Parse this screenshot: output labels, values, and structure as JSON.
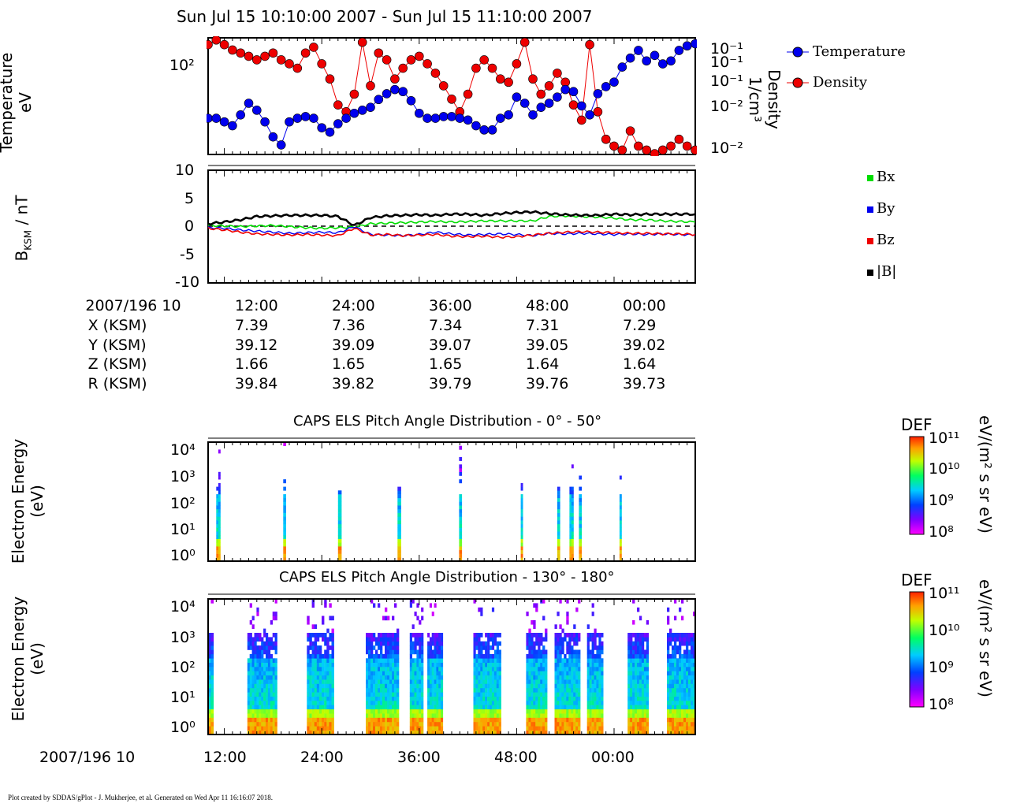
{
  "figure": {
    "title": "Sun Jul 15 10:10:00 2007 - Sun Jul 15 11:10:00 2007",
    "footer": "Plot created by SDDAS/gPlot - J. Mukherjee, et al.  Generated on Wed Apr 11 16:16:07 2018."
  },
  "panel1": {
    "ylabel_line1": "Temperature",
    "ylabel_line2": "eV",
    "ytick": "10²",
    "right_label_line1": "Density",
    "right_label_line2": "1/cm³",
    "right_ticks": [
      "10⁻¹",
      "10⁻¹",
      "10⁻¹",
      "10⁻²",
      "10⁻²"
    ]
  },
  "panel2": {
    "ylabel": "B",
    "ylabel_sub": "KSM",
    "ylabel_rest": " / nT",
    "yticks": [
      "10",
      "5",
      "0",
      "-5",
      "-10"
    ]
  },
  "ephemeris": {
    "rows": [
      {
        "label": "2007/196 10",
        "values": [
          "12:00",
          "24:00",
          "36:00",
          "48:00",
          "00:00"
        ]
      },
      {
        "label": "X (KSM)",
        "values": [
          "7.39",
          "7.36",
          "7.34",
          "7.31",
          "7.29"
        ]
      },
      {
        "label": "Y (KSM)",
        "values": [
          "39.12",
          "39.09",
          "39.07",
          "39.05",
          "39.02"
        ]
      },
      {
        "label": "Z (KSM)",
        "values": [
          "1.66",
          "1.65",
          "1.65",
          "1.64",
          "1.64"
        ]
      },
      {
        "label": "R (KSM)",
        "values": [
          "39.84",
          "39.82",
          "39.79",
          "39.76",
          "39.73"
        ]
      }
    ]
  },
  "panel3": {
    "title": "CAPS ELS Pitch Angle Distribution - 0° - 50°",
    "ylabel_line1": "Electron Energy",
    "ylabel_line2": "(eV)"
  },
  "panel4": {
    "title": "CAPS ELS Pitch Angle Distribution - 130° - 180°",
    "ylabel_line1": "Electron Energy",
    "ylabel_line2": "(eV)"
  },
  "spec_yticks": [
    "10⁴",
    "10³",
    "10²",
    "10¹",
    "10⁰"
  ],
  "colorbar": {
    "title": "DEF",
    "units": "eV/(m² s sr eV)",
    "ticks": [
      "10¹¹",
      "10¹⁰",
      "10⁹",
      "10⁸"
    ]
  },
  "bottom_axis": {
    "label": "2007/196 10",
    "ticks": [
      "12:00",
      "24:00",
      "36:00",
      "48:00",
      "00:00"
    ]
  },
  "colors": {
    "temperature": "#0000ee",
    "density": "#ee0000",
    "bx": "#00dd00",
    "by": "#0000ee",
    "bz": "#ee0000",
    "btot": "#000000"
  },
  "chart_data": [
    {
      "type": "scatter",
      "panel": "temperature_density",
      "x_unit": "seconds after 10:10:00",
      "series": [
        {
          "name": "Temperature",
          "axis": "left",
          "x": [
            0,
            60,
            120,
            180,
            240,
            300,
            360,
            420,
            480,
            540,
            600,
            660,
            720,
            780,
            840,
            900,
            960,
            1020,
            1080,
            1140,
            1200,
            1260,
            1320,
            1380,
            1440,
            1500,
            1560,
            1620,
            1680,
            1740,
            1800,
            1860,
            1920,
            1980,
            2040,
            2100,
            2160,
            2220,
            2280,
            2340,
            2400,
            2460,
            2520,
            2580,
            2640,
            2700,
            2760,
            2820,
            2880,
            2940,
            3000,
            3060,
            3120,
            3180,
            3240,
            3300,
            3360,
            3420,
            3480,
            3540,
            3600
          ],
          "y": [
            30,
            30,
            28,
            26,
            32,
            40,
            35,
            28,
            21,
            18,
            28,
            30,
            31,
            30,
            25,
            23,
            27,
            30,
            33,
            35,
            37,
            43,
            48,
            52,
            50,
            42,
            33,
            30,
            30,
            31,
            31,
            30,
            29,
            26,
            24,
            24,
            30,
            32,
            45,
            40,
            32,
            37,
            40,
            45,
            52,
            50,
            38,
            32,
            48,
            55,
            60,
            80,
            95,
            110,
            90,
            100,
            85,
            90,
            110,
            120,
            125
          ]
        },
        {
          "name": "Density",
          "axis": "right",
          "x": [
            0,
            60,
            120,
            180,
            240,
            300,
            360,
            420,
            480,
            540,
            600,
            660,
            720,
            780,
            840,
            900,
            960,
            1020,
            1080,
            1140,
            1200,
            1260,
            1320,
            1380,
            1440,
            1500,
            1560,
            1620,
            1680,
            1740,
            1800,
            1860,
            1920,
            1980,
            2040,
            2100,
            2160,
            2220,
            2280,
            2340,
            2400,
            2460,
            2520,
            2580,
            2640,
            2700,
            2760,
            2820,
            2880,
            2940,
            3000,
            3060,
            3120,
            3180,
            3240,
            3300,
            3360,
            3420,
            3480,
            3540,
            3600
          ],
          "y": [
            0.15,
            0.17,
            0.15,
            0.13,
            0.12,
            0.11,
            0.1,
            0.11,
            0.12,
            0.1,
            0.09,
            0.08,
            0.12,
            0.14,
            0.09,
            0.06,
            0.03,
            0.025,
            0.04,
            0.16,
            0.05,
            0.12,
            0.1,
            0.06,
            0.08,
            0.1,
            0.11,
            0.09,
            0.07,
            0.05,
            0.035,
            0.025,
            0.04,
            0.08,
            0.1,
            0.08,
            0.06,
            0.055,
            0.09,
            0.16,
            0.06,
            0.04,
            0.05,
            0.07,
            0.055,
            0.03,
            0.02,
            0.15,
            0.025,
            0.012,
            0.01,
            0.009,
            0.015,
            0.01,
            0.009,
            0.008,
            0.009,
            0.01,
            0.012,
            0.01,
            0.009
          ]
        }
      ],
      "y_left_scale": "log",
      "y_right_scale": "log",
      "legend_position": "right"
    },
    {
      "type": "line",
      "panel": "magnetic_field",
      "x_unit": "seconds after 10:10:00",
      "ylabel": "B_KSM / nT",
      "ylim": [
        -10,
        10
      ],
      "x": [
        0,
        120,
        240,
        360,
        480,
        600,
        720,
        840,
        960,
        1080,
        1200,
        1320,
        1440,
        1560,
        1680,
        1800,
        1920,
        2040,
        2160,
        2280,
        2400,
        2520,
        2640,
        2760,
        2880,
        3000,
        3120,
        3240,
        3360,
        3480,
        3600
      ],
      "series": [
        {
          "name": "Bx",
          "values": [
            0.2,
            0.1,
            0.0,
            0.1,
            0.2,
            0.0,
            -0.2,
            -0.3,
            -0.2,
            -0.1,
            0.5,
            0.6,
            0.7,
            0.8,
            0.9,
            0.8,
            0.9,
            1.0,
            1.0,
            1.0,
            1.0,
            1.8,
            1.9,
            1.8,
            1.7,
            1.5,
            1.2,
            1.2,
            1.0,
            0.9,
            0.8
          ]
        },
        {
          "name": "By",
          "values": [
            -0.2,
            -0.3,
            -0.6,
            -0.8,
            -1.0,
            -1.2,
            -1.1,
            -1.0,
            -1.1,
            0.0,
            -1.4,
            -1.5,
            -1.6,
            -1.4,
            -1.0,
            -1.3,
            -1.5,
            -1.4,
            -1.3,
            -1.4,
            -1.6,
            -1.2,
            -1.3,
            -1.2,
            -1.3,
            -1.4,
            -1.3,
            -1.4,
            -1.3,
            -1.4,
            -1.5
          ]
        },
        {
          "name": "Bz",
          "values": [
            -0.3,
            -0.6,
            -1.0,
            -1.3,
            -1.4,
            -1.5,
            -1.4,
            -1.5,
            -1.6,
            -0.3,
            -1.5,
            -1.4,
            -1.6,
            -1.5,
            -1.4,
            -1.7,
            -1.8,
            -1.7,
            -1.9,
            -1.8,
            -1.5,
            -1.2,
            -1.0,
            -0.9,
            -1.0,
            -1.1,
            -1.2,
            -1.2,
            -1.3,
            -1.3,
            -1.4
          ]
        },
        {
          "name": "|B|",
          "values": [
            0.5,
            0.8,
            1.2,
            1.8,
            1.9,
            2.0,
            2.0,
            2.0,
            1.8,
            0.2,
            1.6,
            1.9,
            2.0,
            2.1,
            2.0,
            2.2,
            2.2,
            2.0,
            2.3,
            2.5,
            2.6,
            2.3,
            2.1,
            2.0,
            2.0,
            2.2,
            2.1,
            2.2,
            2.2,
            2.2,
            2.2
          ]
        }
      ]
    },
    {
      "type": "heatmap",
      "panel": "els_0_50",
      "x_unit": "seconds after 10:10:00",
      "bursts_x": [
        [
          60,
          90
        ],
        [
          555,
          575
        ],
        [
          960,
          985
        ],
        [
          1400,
          1425
        ],
        [
          1855,
          1875
        ],
        [
          2310,
          2325
        ],
        [
          2580,
          2600
        ],
        [
          2670,
          2700
        ],
        [
          2740,
          2760
        ],
        [
          3040,
          3055
        ]
      ],
      "ylim": [
        1,
        20000
      ],
      "y_scale": "log"
    },
    {
      "type": "heatmap",
      "panel": "els_130_180",
      "x_unit": "seconds after 10:10:00",
      "bursts_x": [
        [
          0,
          40
        ],
        [
          290,
          510
        ],
        [
          730,
          930
        ],
        [
          1165,
          1410
        ],
        [
          1490,
          1590
        ],
        [
          1620,
          1735
        ],
        [
          1960,
          2165
        ],
        [
          2350,
          2505
        ],
        [
          2560,
          2750
        ],
        [
          2800,
          2920
        ],
        [
          3100,
          3255
        ],
        [
          3390,
          3600
        ]
      ],
      "ylim": [
        1,
        20000
      ],
      "y_scale": "log"
    }
  ]
}
